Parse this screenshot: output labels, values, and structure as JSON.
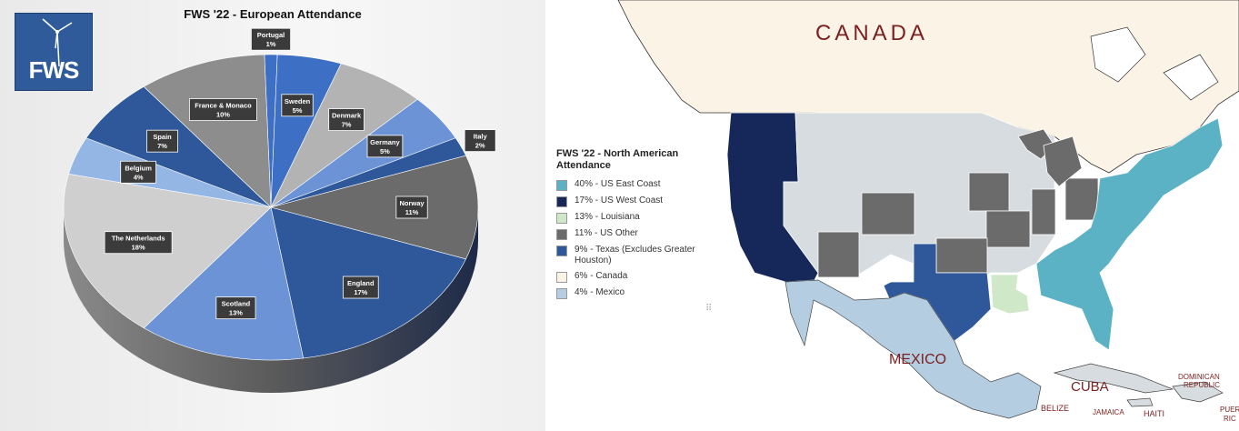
{
  "colors": {
    "navy": "#16275a",
    "dark_blue": "#2e5899",
    "mid_blue": "#3d6fc4",
    "blue": "#6b93d6",
    "light_blue": "#94b6e4",
    "grey_dark": "#6b6b6b",
    "grey_mid": "#8d8d8d",
    "grey_light": "#b3b3b3",
    "grey_pale": "#cfcfcf",
    "teal": "#5ab2c4",
    "pale_green": "#cfe8c7",
    "canada": "#fbf3e6",
    "mexico": "#b4cde0",
    "state_other": "#d6dcdf"
  },
  "logo": {
    "text": "FWS",
    "icon": "wind-turbine-icon"
  },
  "chart_data": [
    {
      "type": "pie",
      "title": "FWS '22 - European Attendance",
      "slices": [
        {
          "label": "Portugal",
          "value": 1,
          "display": "1%",
          "color": "#3d6fc4"
        },
        {
          "label": "Sweden",
          "value": 5,
          "display": "5%",
          "color": "#3d6fc4"
        },
        {
          "label": "Denmark",
          "value": 7,
          "display": "7%",
          "color": "#b3b3b3"
        },
        {
          "label": "Germany",
          "value": 5,
          "display": "5%",
          "color": "#6b93d6"
        },
        {
          "label": "Italy",
          "value": 2,
          "display": "2%",
          "color": "#2e5899"
        },
        {
          "label": "Norway",
          "value": 11,
          "display": "11%",
          "color": "#6b6b6b"
        },
        {
          "label": "England",
          "value": 17,
          "display": "17%",
          "color": "#2e5899"
        },
        {
          "label": "Scotland",
          "value": 13,
          "display": "13%",
          "color": "#6b93d6"
        },
        {
          "label": "The Netherlands",
          "value": 18,
          "display": "18%",
          "color": "#cfcfcf"
        },
        {
          "label": "Belgium",
          "value": 4,
          "display": "4%",
          "color": "#94b6e4"
        },
        {
          "label": "Spain",
          "value": 7,
          "display": "7%",
          "color": "#2e5899"
        },
        {
          "label": "France & Monaco",
          "value": 10,
          "display": "10%",
          "color": "#8d8d8d"
        }
      ]
    },
    {
      "type": "map",
      "title": "FWS '22 - North American Attendance",
      "series": [
        {
          "name": "40% - US East Coast",
          "value": 40,
          "color": "#5ab2c4"
        },
        {
          "name": "17% - US West Coast",
          "value": 17,
          "color": "#16275a"
        },
        {
          "name": "13% - Louisiana",
          "value": 13,
          "color": "#cfe8c7"
        },
        {
          "name": "11% - US Other",
          "value": 11,
          "color": "#6b6b6b"
        },
        {
          "name": "9% - Texas (Excludes Greater Houston)",
          "value": 9,
          "color": "#2e5899"
        },
        {
          "name": "6% - Canada",
          "value": 6,
          "color": "#fbf3e6"
        },
        {
          "name": "4% - Mexico",
          "value": 4,
          "color": "#b4cde0"
        }
      ]
    }
  ],
  "map_labels": {
    "canada": "CANADA",
    "mexico": "MEXICO",
    "cuba": "CUBA",
    "belize": "BELIZE",
    "jamaica": "JAMAICA",
    "haiti": "HAITI",
    "dominican_1": "DOMINICAN",
    "dominican_2": "REPUBLIC",
    "puerto_1": "PUER",
    "puerto_2": "RIC"
  },
  "resize_handle_icon": "resize-grip-icon"
}
